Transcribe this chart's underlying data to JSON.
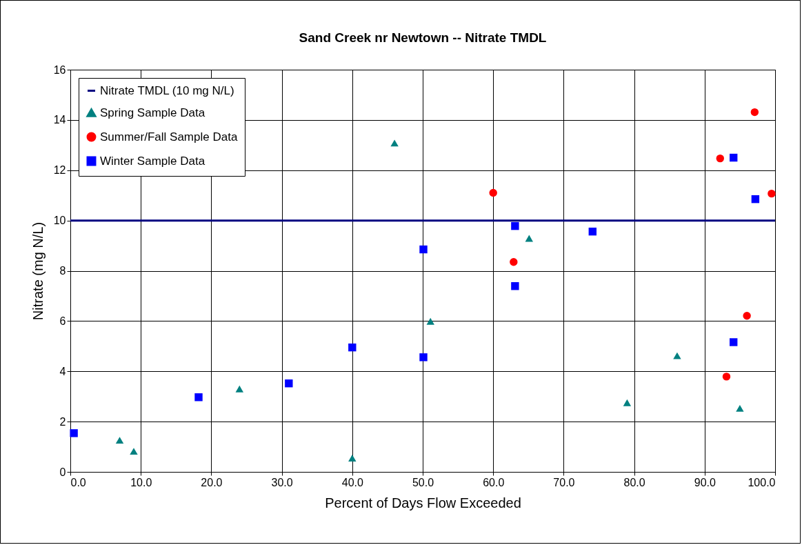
{
  "chart_data": {
    "type": "scatter",
    "title": "Sand Creek nr Newtown -- Nitrate TMDL",
    "xlabel": "Percent of Days Flow Exceeded",
    "ylabel": "Nitrate (mg N/L)",
    "xlim": [
      0,
      100
    ],
    "xticks": [
      {
        "value": 0,
        "label": "0.0"
      },
      {
        "value": 10,
        "label": "10.0"
      },
      {
        "value": 20,
        "label": "20.0"
      },
      {
        "value": 30,
        "label": "30.0"
      },
      {
        "value": 40,
        "label": "40.0"
      },
      {
        "value": 50,
        "label": "50.0"
      },
      {
        "value": 60,
        "label": "60.0"
      },
      {
        "value": 70,
        "label": "70.0"
      },
      {
        "value": 80,
        "label": "80.0"
      },
      {
        "value": 90,
        "label": "90.0"
      },
      {
        "value": 100,
        "label": "100.0"
      }
    ],
    "ylim": [
      0,
      16
    ],
    "yticks": [
      0,
      2,
      4,
      6,
      8,
      10,
      12,
      14,
      16
    ],
    "grid": true,
    "legend": "top left",
    "series": [
      {
        "name": "Nitrate TMDL (10 mg N/L)",
        "type": "line",
        "color": "#000080",
        "x": [
          0,
          100
        ],
        "values": [
          10,
          10
        ]
      },
      {
        "name": "Spring Sample Data",
        "marker": "triangle",
        "color": "#008080",
        "x": [
          7,
          9,
          24,
          40,
          46,
          51.1,
          65.1,
          79,
          86.1,
          95
        ],
        "values": [
          1.26,
          0.82,
          3.3,
          0.55,
          13.08,
          5.99,
          9.29,
          2.75,
          4.62,
          2.53
        ]
      },
      {
        "name": "Summer/Fall Sample Data",
        "marker": "circle",
        "color": "#ff0000",
        "x": [
          60,
          62.9,
          92.2,
          93.1,
          96,
          97.1,
          99.5
        ],
        "values": [
          11.1,
          8.35,
          12.47,
          3.79,
          6.21,
          14.31,
          11.07
        ]
      },
      {
        "name": "Winter Sample Data",
        "marker": "square",
        "color": "#0000ff",
        "x": [
          0.5,
          18.2,
          31,
          40,
          50.1,
          50.1,
          63.1,
          63.1,
          74.1,
          94.1,
          94.1,
          97.2
        ],
        "values": [
          1.54,
          2.97,
          3.52,
          4.95,
          8.85,
          4.56,
          9.78,
          7.39,
          9.56,
          12.5,
          5.16,
          10.85
        ]
      }
    ]
  }
}
